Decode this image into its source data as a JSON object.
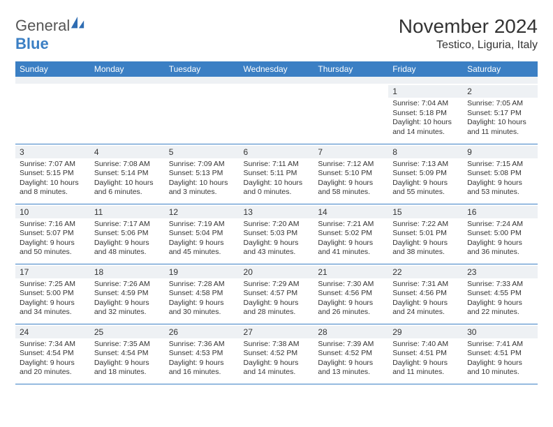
{
  "logo": {
    "text1": "General",
    "text2": "Blue"
  },
  "title": "November 2024",
  "location": "Testico, Liguria, Italy",
  "colors": {
    "header_bg": "#3b7fc4",
    "header_text": "#ffffff",
    "daynum_bg": "#eef1f4",
    "border": "#3b7fc4",
    "body_text": "#333333",
    "background": "#ffffff"
  },
  "fonts": {
    "title_size": 28,
    "location_size": 16,
    "dayheader_size": 12,
    "daynum_size": 12,
    "body_size": 10.5
  },
  "day_headers": [
    "Sunday",
    "Monday",
    "Tuesday",
    "Wednesday",
    "Thursday",
    "Friday",
    "Saturday"
  ],
  "weeks": [
    [
      null,
      null,
      null,
      null,
      null,
      {
        "n": "1",
        "sr": "Sunrise: 7:04 AM",
        "ss": "Sunset: 5:18 PM",
        "dl1": "Daylight: 10 hours",
        "dl2": "and 14 minutes."
      },
      {
        "n": "2",
        "sr": "Sunrise: 7:05 AM",
        "ss": "Sunset: 5:17 PM",
        "dl1": "Daylight: 10 hours",
        "dl2": "and 11 minutes."
      }
    ],
    [
      {
        "n": "3",
        "sr": "Sunrise: 7:07 AM",
        "ss": "Sunset: 5:15 PM",
        "dl1": "Daylight: 10 hours",
        "dl2": "and 8 minutes."
      },
      {
        "n": "4",
        "sr": "Sunrise: 7:08 AM",
        "ss": "Sunset: 5:14 PM",
        "dl1": "Daylight: 10 hours",
        "dl2": "and 6 minutes."
      },
      {
        "n": "5",
        "sr": "Sunrise: 7:09 AM",
        "ss": "Sunset: 5:13 PM",
        "dl1": "Daylight: 10 hours",
        "dl2": "and 3 minutes."
      },
      {
        "n": "6",
        "sr": "Sunrise: 7:11 AM",
        "ss": "Sunset: 5:11 PM",
        "dl1": "Daylight: 10 hours",
        "dl2": "and 0 minutes."
      },
      {
        "n": "7",
        "sr": "Sunrise: 7:12 AM",
        "ss": "Sunset: 5:10 PM",
        "dl1": "Daylight: 9 hours",
        "dl2": "and 58 minutes."
      },
      {
        "n": "8",
        "sr": "Sunrise: 7:13 AM",
        "ss": "Sunset: 5:09 PM",
        "dl1": "Daylight: 9 hours",
        "dl2": "and 55 minutes."
      },
      {
        "n": "9",
        "sr": "Sunrise: 7:15 AM",
        "ss": "Sunset: 5:08 PM",
        "dl1": "Daylight: 9 hours",
        "dl2": "and 53 minutes."
      }
    ],
    [
      {
        "n": "10",
        "sr": "Sunrise: 7:16 AM",
        "ss": "Sunset: 5:07 PM",
        "dl1": "Daylight: 9 hours",
        "dl2": "and 50 minutes."
      },
      {
        "n": "11",
        "sr": "Sunrise: 7:17 AM",
        "ss": "Sunset: 5:06 PM",
        "dl1": "Daylight: 9 hours",
        "dl2": "and 48 minutes."
      },
      {
        "n": "12",
        "sr": "Sunrise: 7:19 AM",
        "ss": "Sunset: 5:04 PM",
        "dl1": "Daylight: 9 hours",
        "dl2": "and 45 minutes."
      },
      {
        "n": "13",
        "sr": "Sunrise: 7:20 AM",
        "ss": "Sunset: 5:03 PM",
        "dl1": "Daylight: 9 hours",
        "dl2": "and 43 minutes."
      },
      {
        "n": "14",
        "sr": "Sunrise: 7:21 AM",
        "ss": "Sunset: 5:02 PM",
        "dl1": "Daylight: 9 hours",
        "dl2": "and 41 minutes."
      },
      {
        "n": "15",
        "sr": "Sunrise: 7:22 AM",
        "ss": "Sunset: 5:01 PM",
        "dl1": "Daylight: 9 hours",
        "dl2": "and 38 minutes."
      },
      {
        "n": "16",
        "sr": "Sunrise: 7:24 AM",
        "ss": "Sunset: 5:00 PM",
        "dl1": "Daylight: 9 hours",
        "dl2": "and 36 minutes."
      }
    ],
    [
      {
        "n": "17",
        "sr": "Sunrise: 7:25 AM",
        "ss": "Sunset: 5:00 PM",
        "dl1": "Daylight: 9 hours",
        "dl2": "and 34 minutes."
      },
      {
        "n": "18",
        "sr": "Sunrise: 7:26 AM",
        "ss": "Sunset: 4:59 PM",
        "dl1": "Daylight: 9 hours",
        "dl2": "and 32 minutes."
      },
      {
        "n": "19",
        "sr": "Sunrise: 7:28 AM",
        "ss": "Sunset: 4:58 PM",
        "dl1": "Daylight: 9 hours",
        "dl2": "and 30 minutes."
      },
      {
        "n": "20",
        "sr": "Sunrise: 7:29 AM",
        "ss": "Sunset: 4:57 PM",
        "dl1": "Daylight: 9 hours",
        "dl2": "and 28 minutes."
      },
      {
        "n": "21",
        "sr": "Sunrise: 7:30 AM",
        "ss": "Sunset: 4:56 PM",
        "dl1": "Daylight: 9 hours",
        "dl2": "and 26 minutes."
      },
      {
        "n": "22",
        "sr": "Sunrise: 7:31 AM",
        "ss": "Sunset: 4:56 PM",
        "dl1": "Daylight: 9 hours",
        "dl2": "and 24 minutes."
      },
      {
        "n": "23",
        "sr": "Sunrise: 7:33 AM",
        "ss": "Sunset: 4:55 PM",
        "dl1": "Daylight: 9 hours",
        "dl2": "and 22 minutes."
      }
    ],
    [
      {
        "n": "24",
        "sr": "Sunrise: 7:34 AM",
        "ss": "Sunset: 4:54 PM",
        "dl1": "Daylight: 9 hours",
        "dl2": "and 20 minutes."
      },
      {
        "n": "25",
        "sr": "Sunrise: 7:35 AM",
        "ss": "Sunset: 4:54 PM",
        "dl1": "Daylight: 9 hours",
        "dl2": "and 18 minutes."
      },
      {
        "n": "26",
        "sr": "Sunrise: 7:36 AM",
        "ss": "Sunset: 4:53 PM",
        "dl1": "Daylight: 9 hours",
        "dl2": "and 16 minutes."
      },
      {
        "n": "27",
        "sr": "Sunrise: 7:38 AM",
        "ss": "Sunset: 4:52 PM",
        "dl1": "Daylight: 9 hours",
        "dl2": "and 14 minutes."
      },
      {
        "n": "28",
        "sr": "Sunrise: 7:39 AM",
        "ss": "Sunset: 4:52 PM",
        "dl1": "Daylight: 9 hours",
        "dl2": "and 13 minutes."
      },
      {
        "n": "29",
        "sr": "Sunrise: 7:40 AM",
        "ss": "Sunset: 4:51 PM",
        "dl1": "Daylight: 9 hours",
        "dl2": "and 11 minutes."
      },
      {
        "n": "30",
        "sr": "Sunrise: 7:41 AM",
        "ss": "Sunset: 4:51 PM",
        "dl1": "Daylight: 9 hours",
        "dl2": "and 10 minutes."
      }
    ]
  ]
}
